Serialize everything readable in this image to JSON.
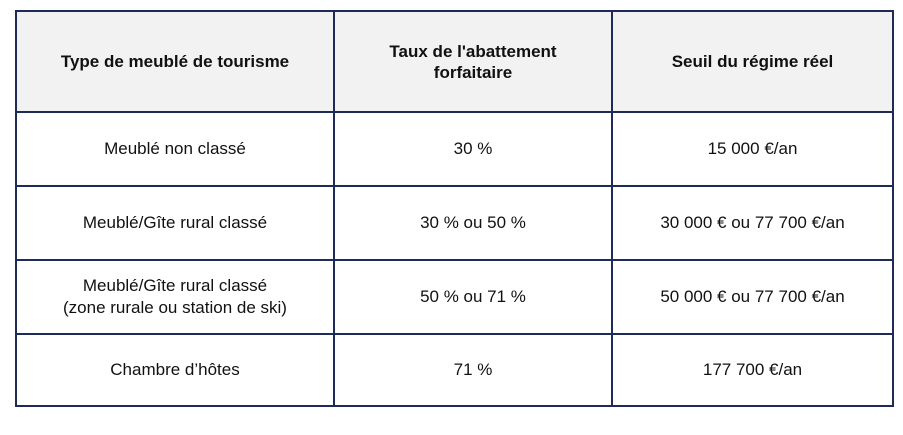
{
  "table": {
    "headers": [
      {
        "lines": [
          "Type de meublé de tourisme"
        ]
      },
      {
        "lines": [
          "Taux de l'abattement",
          "forfaitaire"
        ]
      },
      {
        "lines": [
          "Seuil du régime réel"
        ]
      }
    ],
    "rows": [
      {
        "type": [
          "Meublé non classé"
        ],
        "taux": "30 %",
        "seuil": "15 000 €/an"
      },
      {
        "type": [
          "Meublé/Gîte rural classé"
        ],
        "taux": "30 % ou 50 %",
        "seuil": "30 000 € ou 77 700 €/an"
      },
      {
        "type": [
          "Meublé/Gîte rural classé",
          "(zone rurale ou station de ski)"
        ],
        "taux": "50 % ou 71 %",
        "seuil": "50 000 € ou 77 700 €/an"
      },
      {
        "type": [
          "Chambre d’hôtes"
        ],
        "taux": "71 %",
        "seuil": "177 700 €/an"
      }
    ]
  },
  "colors": {
    "border": "#1f2a57",
    "header_bg": "#f2f2f2"
  }
}
